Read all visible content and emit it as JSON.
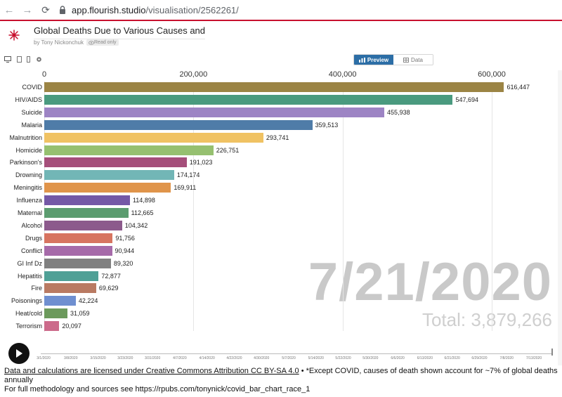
{
  "browser": {
    "url_host": "app.flourish.studio",
    "url_path": "/visualisation/2562261/"
  },
  "app": {
    "title": "Global Deaths Due to Various Causes and COV",
    "byline": "by Tony Nickonchuk",
    "readonly_label": "Read only",
    "preview_tab": "Preview",
    "data_tab": "Data",
    "accent_color": "#2c6ea6"
  },
  "chart_data": {
    "type": "bar",
    "orientation": "horizontal",
    "x_ticks": [
      "0",
      "200,000",
      "400,000",
      "600,000"
    ],
    "xlim": [
      0,
      640000
    ],
    "grid": true,
    "categories": [
      "COVID",
      "HIV/AIDS",
      "Suicide",
      "Malaria",
      "Malnutrition",
      "Homicide",
      "Parkinson's",
      "Drowning",
      "Meningitis",
      "Influenza",
      "Maternal",
      "Alcohol",
      "Drugs",
      "Conflict",
      "GI Inf Dz",
      "Hepatitis",
      "Fire",
      "Poisonings",
      "Heat/cold",
      "Terrorism"
    ],
    "values": [
      616447,
      547694,
      455938,
      359513,
      293741,
      226751,
      191023,
      174174,
      169911,
      114898,
      112665,
      104342,
      91756,
      90944,
      89320,
      72877,
      69629,
      42224,
      31059,
      20097
    ],
    "value_labels": [
      "616,447",
      "547,694",
      "455,938",
      "359,513",
      "293,741",
      "226,751",
      "191,023",
      "174,174",
      "169,911",
      "114,898",
      "112,665",
      "104,342",
      "91,756",
      "90,944",
      "89,320",
      "72,877",
      "69,629",
      "42,224",
      "31,059",
      "20,097"
    ],
    "colors": [
      "#9b8444",
      "#4a9a7f",
      "#9d84c4",
      "#4f7ca8",
      "#f0c263",
      "#96c070",
      "#a54e7a",
      "#72b6b6",
      "#e0944a",
      "#7458a6",
      "#5b9c6f",
      "#8c5a8c",
      "#d77460",
      "#a66aa9",
      "#808080",
      "#4fa096",
      "#b97a62",
      "#6f8fd0",
      "#6c9a5c",
      "#cc6a8a"
    ],
    "date_label": "7/21/2020",
    "total_label": "Total: 3,879,266"
  },
  "timeline": {
    "ticks": [
      "3/1/2020",
      "3/8/2020",
      "3/15/2020",
      "3/23/2020",
      "3/31/2020",
      "4/7/2020",
      "4/14/2020",
      "4/22/2020",
      "4/30/2020",
      "5/7/2020",
      "5/14/2020",
      "5/22/2020",
      "5/30/2020",
      "6/6/2020",
      "6/13/2020",
      "6/21/2020",
      "6/29/2020",
      "7/8/2020",
      "7/13/2020"
    ]
  },
  "footer": {
    "license_link": "Data and calculations are licensed under Creative Commons Attribution CC BY-SA 4.0",
    "note": " • *Except COVID, causes of death shown account for ~7% of global deaths annually",
    "methodology": "For full methodology and sources see https://rpubs.com/tonynick/covid_bar_chart_race_1"
  }
}
